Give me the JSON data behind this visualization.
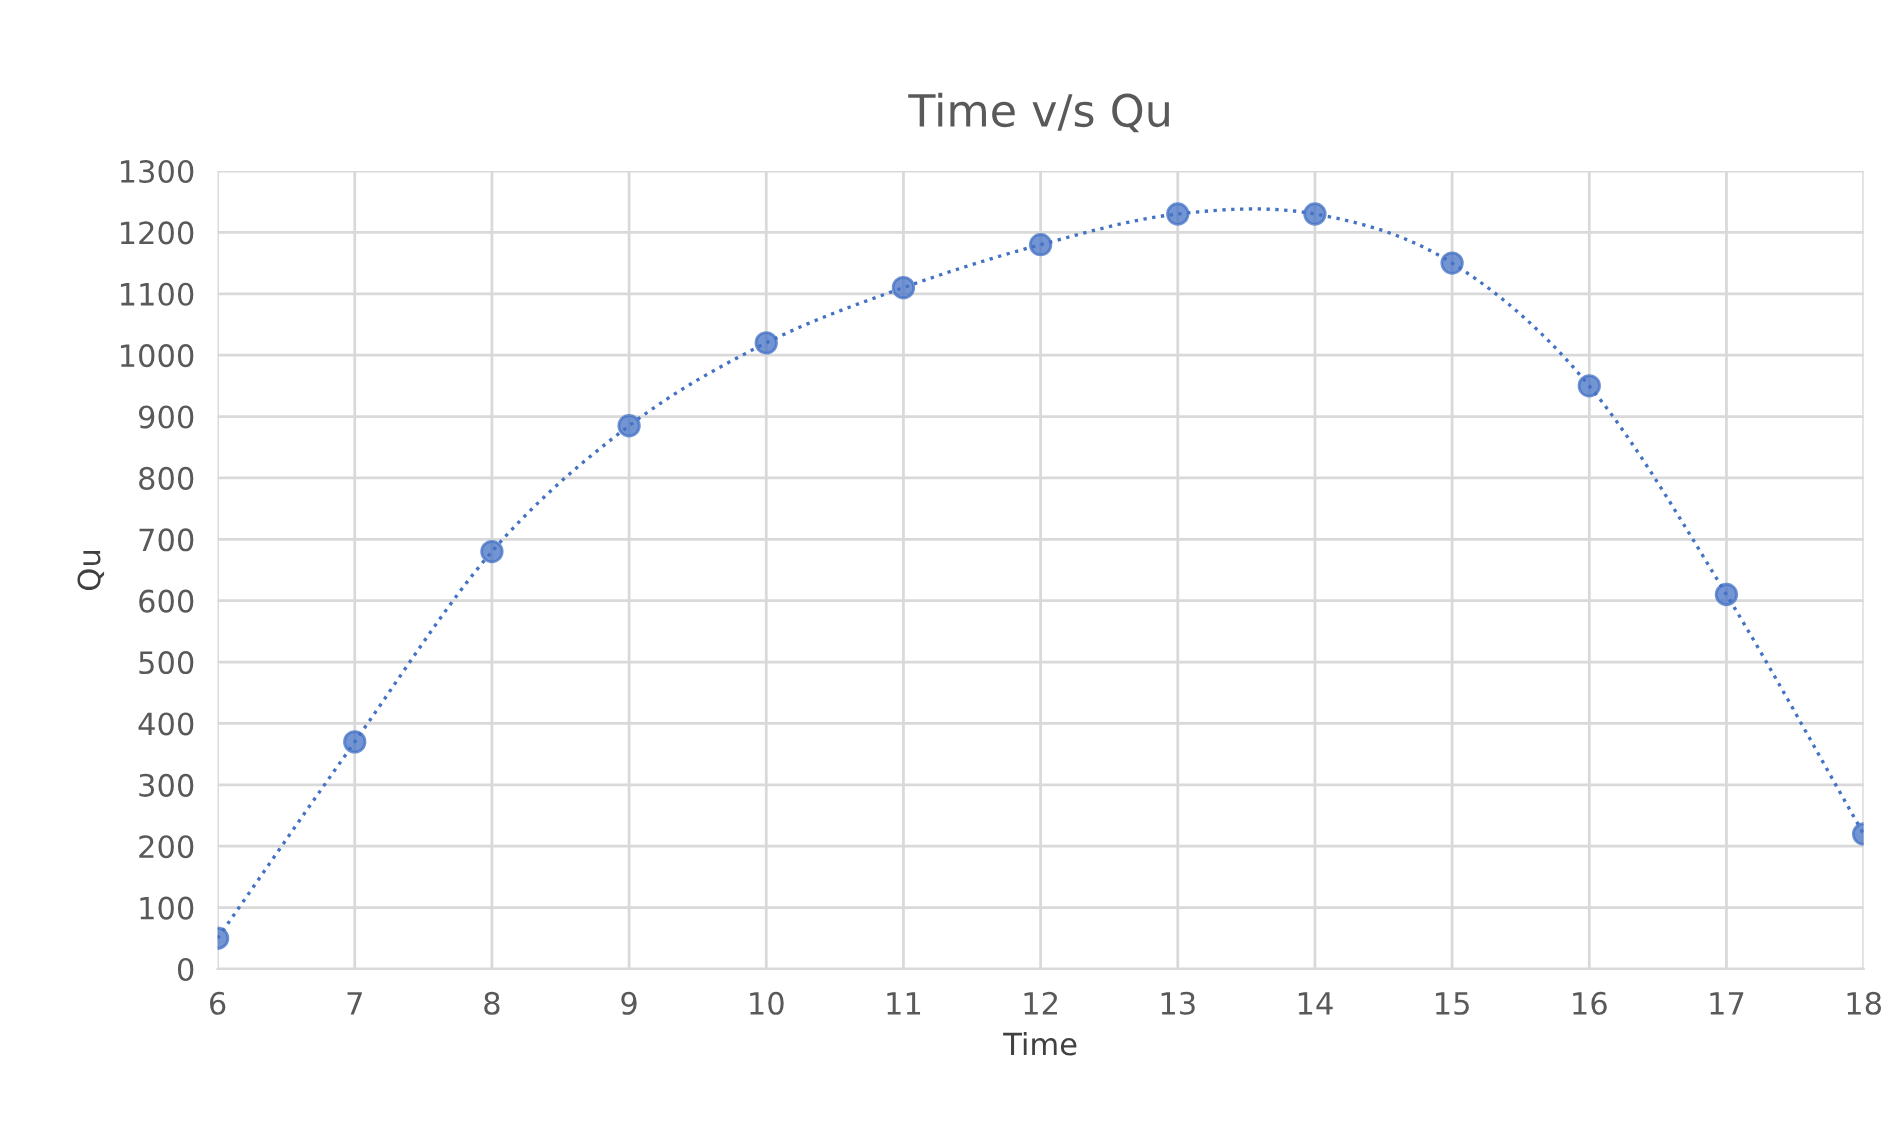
{
  "chart_data": {
    "type": "line",
    "title": "Time v/s Qu",
    "xlabel": "Time",
    "ylabel": "Qu",
    "x": [
      6,
      7,
      8,
      9,
      10,
      11,
      12,
      13,
      14,
      15,
      16,
      17,
      18
    ],
    "series": [
      {
        "color": "#4472c4",
        "values": [
          50,
          370,
          680,
          885,
          1020,
          1110,
          1180,
          1230,
          1230,
          1150,
          950,
          610,
          220
        ]
      }
    ],
    "xlim": [
      6,
      18
    ],
    "xticks": [
      6,
      7,
      8,
      9,
      10,
      11,
      12,
      13,
      14,
      15,
      16,
      17,
      18
    ],
    "ylim": [
      0,
      1300
    ],
    "yticks": [
      0,
      100,
      200,
      300,
      400,
      500,
      600,
      700,
      800,
      900,
      1000,
      1100,
      1200,
      1300
    ],
    "grid": true,
    "marker": "circle",
    "line_style": "dotted",
    "legend": false
  }
}
